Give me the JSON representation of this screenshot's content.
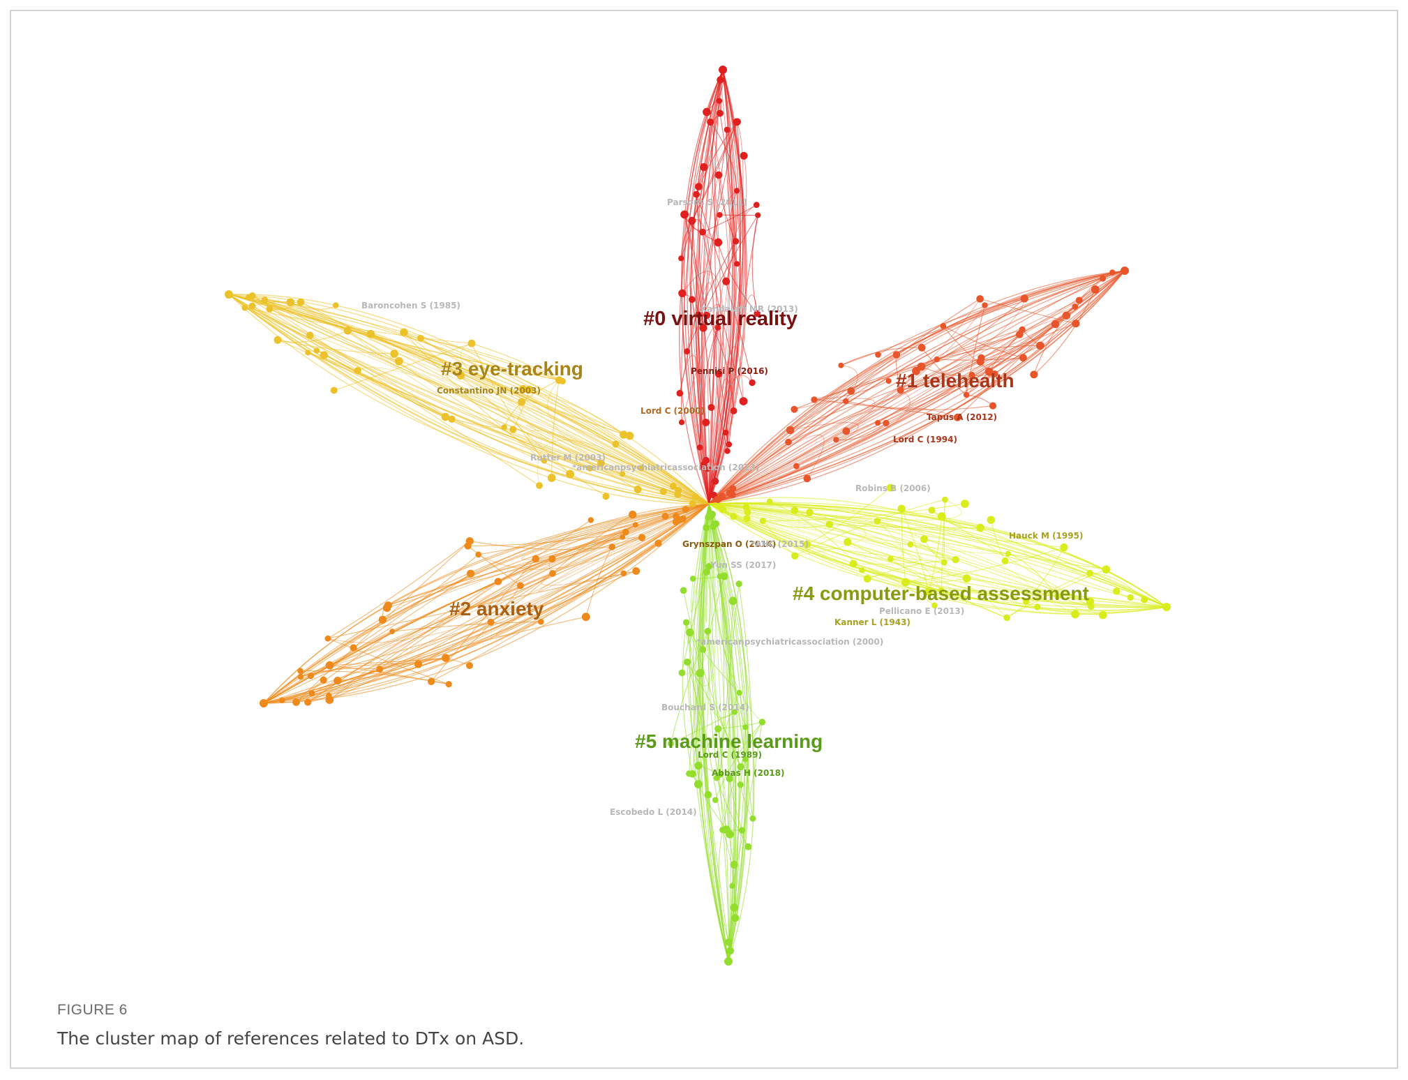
{
  "figure": {
    "label": "FIGURE 6",
    "caption": "The cluster map of references related to DTx on ASD."
  },
  "colors": {
    "c0": "#e0201e",
    "c1": "#e8552a",
    "c2": "#ee8a1c",
    "c3": "#ecc22a",
    "c4": "#d9ec1c",
    "c5": "#93dd2c"
  },
  "clusters": [
    {
      "id": "c0",
      "label": "#0 virtual reality",
      "label_color": "#7a1010"
    },
    {
      "id": "c1",
      "label": "#1 telehealth",
      "label_color": "#a8361a"
    },
    {
      "id": "c2",
      "label": "#2 anxiety",
      "label_color": "#a85f12"
    },
    {
      "id": "c3",
      "label": "#3 eye-tracking",
      "label_color": "#a8851a"
    },
    {
      "id": "c4",
      "label": "#4 computer-based assessment",
      "label_color": "#889a10"
    },
    {
      "id": "c5",
      "label": "#5 machine learning",
      "label_color": "#5a9a1a"
    }
  ],
  "references": [
    {
      "text": "Parsons S (2011)",
      "color": "#b8b8b8"
    },
    {
      "text": "Kandalaft MR (2013)",
      "color": "#b8b8b8"
    },
    {
      "text": "Pennisi P (2016)",
      "color": "#8a1a10"
    },
    {
      "text": "Lord C (2000)",
      "color": "#b06a20"
    },
    {
      "text": "Baroncohen S (1985)",
      "color": "#b8b8b8"
    },
    {
      "text": "Constantino JN (2003)",
      "color": "#a8851a"
    },
    {
      "text": "Rutter M (2003)",
      "color": "#b8b8b8"
    },
    {
      "text": "*americanpsychiatricassociation (2013)",
      "color": "#b8b8b8"
    },
    {
      "text": "Tapus A (2012)",
      "color": "#a8361a"
    },
    {
      "text": "Lord C (1994)",
      "color": "#a8361a"
    },
    {
      "text": "Robins B (2006)",
      "color": "#b8b8b8"
    },
    {
      "text": "Hauck M (1995)",
      "color": "#a8a020"
    },
    {
      "text": "Grynszpan O (2014)",
      "color": "#8a5a10"
    },
    {
      "text": "*AHC (2015)",
      "color": "#b8b8b8"
    },
    {
      "text": "Yun SS (2017)",
      "color": "#b8b8b8"
    },
    {
      "text": "Pellicano E (2013)",
      "color": "#b8b8b8"
    },
    {
      "text": "Kanner L (1943)",
      "color": "#a8a020"
    },
    {
      "text": "*americanpsychiatricassociation (2000)",
      "color": "#b8b8b8"
    },
    {
      "text": "Bouchard S (2014)",
      "color": "#b8b8b8"
    },
    {
      "text": "Lord C (1989)",
      "color": "#5a9a1a"
    },
    {
      "text": "Abbas H (2018)",
      "color": "#5a9a1a"
    },
    {
      "text": "Escobedo L (2014)",
      "color": "#b8b8b8"
    }
  ]
}
